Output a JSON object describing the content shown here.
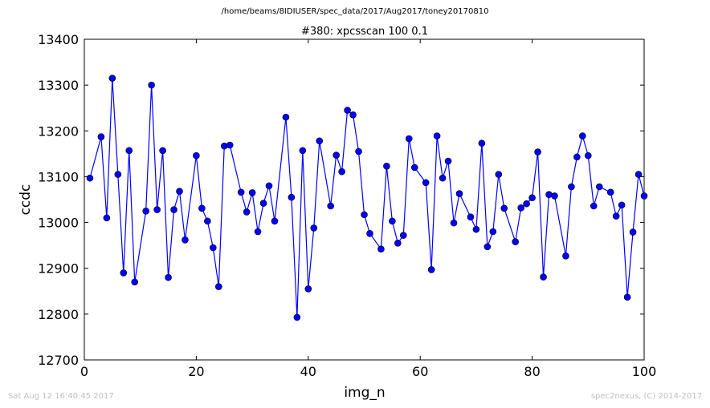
{
  "suptitle": "/home/beams/8IDIUSER/spec_data/2017/Aug2017/toney20170810",
  "footer": {
    "left": "Sat Aug 12 16:40:45 2017",
    "right": "spec2nexus, (C) 2014-2017"
  },
  "chart_data": {
    "type": "line",
    "title": "#380: xpcsscan 100 0.1",
    "xlabel": "img_n",
    "ylabel": "ccdc",
    "xlim": [
      0,
      100
    ],
    "ylim": [
      12700,
      13400
    ],
    "xticks": [
      "0",
      "20",
      "40",
      "60",
      "80",
      "100"
    ],
    "yticks": [
      "12700",
      "12800",
      "12900",
      "13000",
      "13100",
      "13200",
      "13300",
      "13400"
    ],
    "grid": false,
    "marker": "circle",
    "color": "#0000ff",
    "x": [
      1,
      3,
      4,
      5,
      6,
      7,
      8,
      9,
      11,
      12,
      13,
      14,
      15,
      16,
      17,
      18,
      20,
      21,
      22,
      23,
      24,
      25,
      26,
      28,
      29,
      30,
      31,
      32,
      33,
      34,
      36,
      37,
      38,
      39,
      40,
      41,
      42,
      44,
      45,
      46,
      47,
      48,
      49,
      50,
      51,
      53,
      54,
      55,
      56,
      57,
      58,
      59,
      61,
      62,
      63,
      64,
      65,
      66,
      67,
      69,
      70,
      71,
      72,
      73,
      74,
      75,
      77,
      78,
      79,
      80,
      81,
      82,
      83,
      84,
      86,
      87,
      88,
      89,
      90,
      91,
      92,
      94,
      95,
      96,
      97,
      98,
      99,
      100
    ],
    "y": [
      13097,
      13187,
      13010,
      13315,
      13105,
      12890,
      13157,
      12870,
      13025,
      13300,
      13028,
      13157,
      12880,
      13028,
      13068,
      12962,
      13146,
      13031,
      13003,
      12945,
      12860,
      13167,
      13169,
      13066,
      13023,
      13065,
      12980,
      13042,
      13080,
      13003,
      13230,
      13055,
      12793,
      13157,
      12855,
      12988,
      13178,
      13036,
      13147,
      13111,
      13245,
      13235,
      13155,
      13017,
      12976,
      12942,
      13123,
      13003,
      12955,
      12972,
      13183,
      13120,
      13087,
      12897,
      13189,
      13097,
      13134,
      12999,
      13063,
      13012,
      12985,
      13173,
      12947,
      12980,
      13105,
      13031,
      12958,
      13032,
      13041,
      13054,
      13154,
      12881,
      13061,
      13058,
      12927,
      13078,
      13143,
      13189,
      13146,
      13036,
      13078,
      13066,
      13014,
      13038,
      12837,
      12979,
      13105,
      13058
    ]
  }
}
